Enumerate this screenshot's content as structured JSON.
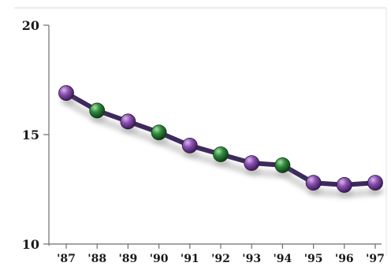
{
  "chart_data": {
    "type": "line",
    "categories": [
      "'87",
      "'88",
      "'89",
      "'90",
      "'91",
      "'92",
      "'93",
      "'94",
      "'95",
      "'96",
      "'97"
    ],
    "series": [
      {
        "values": [
          16.9,
          16.1,
          15.6,
          15.1,
          14.5,
          14.1,
          13.7,
          13.6,
          12.8,
          12.7,
          12.8
        ]
      }
    ],
    "marker_colors": [
      "#8a4fb0",
      "#2f8a3c",
      "#8a4fb0",
      "#2f8a3c",
      "#8a4fb0",
      "#2f8a3c",
      "#8a4fb0",
      "#2f8a3c",
      "#8a4fb0",
      "#8a4fb0",
      "#8a4fb0"
    ],
    "line_color": "#3d2a5c",
    "ylim": [
      10,
      20
    ],
    "yticks": [
      "10",
      "15",
      "20"
    ],
    "title": "",
    "xlabel": "",
    "ylabel": "",
    "grid": false,
    "legend": "none"
  }
}
